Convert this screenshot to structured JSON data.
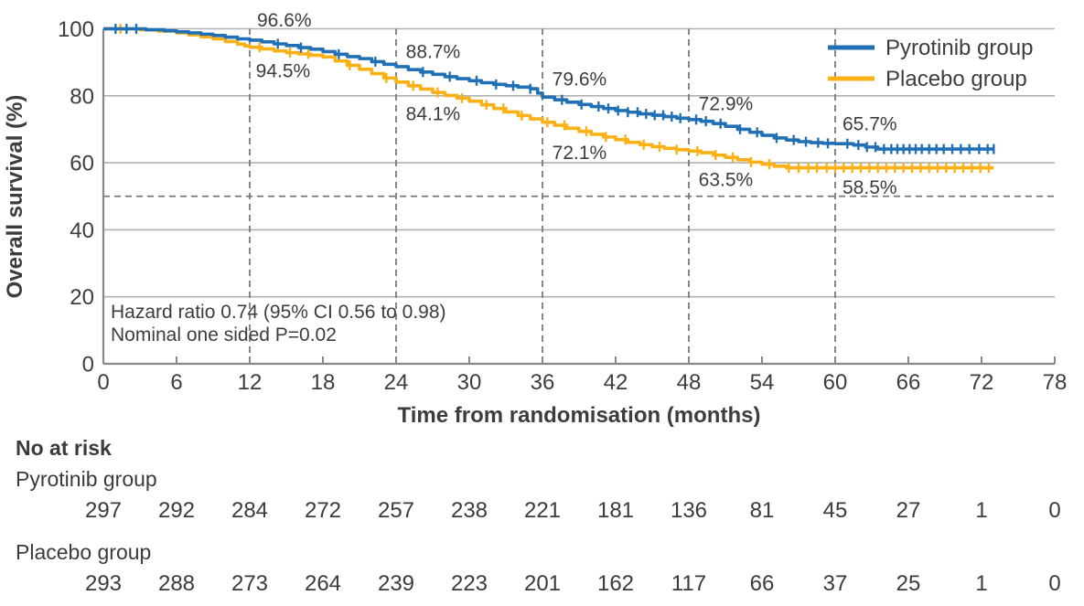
{
  "chart_data": {
    "type": "line",
    "subtype": "kaplan-meier-step",
    "xlabel": "Time from randomisation (months)",
    "ylabel": "Overall survival (%)",
    "xlim": [
      0,
      78
    ],
    "ylim": [
      0,
      100
    ],
    "xticks": [
      0,
      6,
      12,
      18,
      24,
      30,
      36,
      42,
      48,
      54,
      60,
      66,
      72,
      78
    ],
    "yticks": [
      0,
      20,
      40,
      60,
      80,
      100
    ],
    "grid": "horizontal-solid",
    "dashed_vlines_months": [
      12,
      24,
      36,
      48,
      60
    ],
    "dashed_hline_pct": 50,
    "legend_position": "top-right",
    "colors": {
      "pyrotinib": "#2170B5",
      "placebo": "#FBB016",
      "gridline": "#B1B1B1",
      "axis": "#878787",
      "dashed": "#7A7A7A",
      "text": "#3D3D3D"
    },
    "series": [
      {
        "name": "Pyrotinib group",
        "color": "#2170B5",
        "points": [
          [
            0,
            100
          ],
          [
            3.5,
            99.7
          ],
          [
            5,
            99.4
          ],
          [
            6,
            99.1
          ],
          [
            7,
            98.8
          ],
          [
            8,
            98.4
          ],
          [
            9,
            98
          ],
          [
            10,
            97.5
          ],
          [
            11,
            97
          ],
          [
            12,
            96.6
          ],
          [
            13,
            96.1
          ],
          [
            14,
            95.5
          ],
          [
            15,
            95
          ],
          [
            16,
            94.4
          ],
          [
            17,
            93.9
          ],
          [
            18,
            93.2
          ],
          [
            19,
            92.4
          ],
          [
            20,
            91.7
          ],
          [
            21,
            91.1
          ],
          [
            22,
            90.2
          ],
          [
            23,
            89.4
          ],
          [
            24,
            88.7
          ],
          [
            25,
            87.8
          ],
          [
            26,
            87.1
          ],
          [
            27,
            86.4
          ],
          [
            28,
            85.7
          ],
          [
            29,
            85.1
          ],
          [
            30,
            84.5
          ],
          [
            31,
            83.9
          ],
          [
            32,
            83.4
          ],
          [
            33,
            83
          ],
          [
            34,
            82.6
          ],
          [
            35,
            82.1
          ],
          [
            35.6,
            80.8
          ],
          [
            36,
            79.6
          ],
          [
            37,
            78.8
          ],
          [
            38,
            78.1
          ],
          [
            39,
            77.4
          ],
          [
            40,
            76.8
          ],
          [
            41,
            76.2
          ],
          [
            42,
            75.6
          ],
          [
            43,
            75.1
          ],
          [
            44,
            74.6
          ],
          [
            45,
            74.2
          ],
          [
            46,
            73.8
          ],
          [
            47,
            73.3
          ],
          [
            48,
            72.9
          ],
          [
            49,
            72.4
          ],
          [
            50,
            71.7
          ],
          [
            51,
            70.9
          ],
          [
            52,
            70
          ],
          [
            53,
            69.1
          ],
          [
            54,
            68.2
          ],
          [
            55,
            67.4
          ],
          [
            56,
            66.8
          ],
          [
            57,
            66.3
          ],
          [
            58,
            66
          ],
          [
            59,
            65.8
          ],
          [
            60,
            65.7
          ],
          [
            61.5,
            65.3
          ],
          [
            62.5,
            64.7
          ],
          [
            63.5,
            64.1
          ],
          [
            73,
            64.1
          ]
        ],
        "censor_times": [
          1,
          1.9,
          2.7,
          14.3,
          16.2,
          19.3,
          22.3,
          26.2,
          28.4,
          30.6,
          32.2,
          33.6,
          35,
          37.6,
          39.2,
          40.6,
          41.4,
          42.2,
          43,
          43.8,
          44.5,
          45.2,
          45.9,
          46.6,
          47.3,
          48.6,
          49.4,
          50.6,
          52.2,
          53.6,
          55.2,
          56.6,
          57.6,
          58.6,
          59.4,
          61,
          61.9,
          62.6,
          63.3,
          64,
          64.6,
          65.1,
          65.6,
          66.1,
          66.6,
          67.1,
          67.7,
          68.3,
          68.9,
          69.6,
          70.3,
          71,
          71.8,
          72.5,
          73
        ]
      },
      {
        "name": "Placebo group",
        "color": "#FBB016",
        "points": [
          [
            0,
            100
          ],
          [
            3,
            99.7
          ],
          [
            4.5,
            99.3
          ],
          [
            6,
            98.8
          ],
          [
            7,
            98.2
          ],
          [
            8,
            97.6
          ],
          [
            9,
            97
          ],
          [
            10,
            96.2
          ],
          [
            11,
            95.4
          ],
          [
            11.6,
            94.9
          ],
          [
            12,
            94.5
          ],
          [
            13,
            94
          ],
          [
            14,
            93.4
          ],
          [
            15,
            92.9
          ],
          [
            16,
            92.5
          ],
          [
            17,
            92.1
          ],
          [
            18,
            91.6
          ],
          [
            19,
            90.4
          ],
          [
            20,
            89.1
          ],
          [
            21,
            87.9
          ],
          [
            22,
            86.6
          ],
          [
            23,
            85.3
          ],
          [
            24,
            84.1
          ],
          [
            25,
            83
          ],
          [
            26,
            82
          ],
          [
            27,
            81
          ],
          [
            28,
            80.1
          ],
          [
            29,
            79.3
          ],
          [
            30,
            78.4
          ],
          [
            31,
            77.3
          ],
          [
            32,
            76.2
          ],
          [
            33,
            75.2
          ],
          [
            34,
            74.1
          ],
          [
            35,
            73.1
          ],
          [
            36,
            72.1
          ],
          [
            37,
            71.2
          ],
          [
            38,
            70.3
          ],
          [
            39,
            69.4
          ],
          [
            40,
            68.5
          ],
          [
            41,
            67.7
          ],
          [
            42,
            66.9
          ],
          [
            43,
            66.1
          ],
          [
            44,
            65.4
          ],
          [
            45,
            64.8
          ],
          [
            46,
            64.3
          ],
          [
            47,
            63.9
          ],
          [
            48,
            63.5
          ],
          [
            49,
            63
          ],
          [
            50,
            62.3
          ],
          [
            51,
            61.6
          ],
          [
            52,
            60.9
          ],
          [
            53,
            60.2
          ],
          [
            54,
            59.6
          ],
          [
            55,
            59
          ],
          [
            56,
            58.5
          ],
          [
            73,
            58.5
          ]
        ],
        "censor_times": [
          1.4,
          12.8,
          15.3,
          16.8,
          20.2,
          23.2,
          25.4,
          27.4,
          29.4,
          31.4,
          32.8,
          34.3,
          36.4,
          37.8,
          39.6,
          41.2,
          42.8,
          44.3,
          45.6,
          47,
          48.7,
          50.2,
          51.6,
          53.1,
          54.6,
          56.2,
          57,
          57.8,
          58.5,
          59.3,
          60,
          60.7,
          61.4,
          62.1,
          62.8,
          63.5,
          64.2,
          64.9,
          65.6,
          66.3,
          67,
          67.7,
          68.4,
          69.1,
          69.8,
          70.5,
          71.2,
          71.9,
          72.6
        ]
      }
    ],
    "annotations": [
      {
        "text": "96.6%",
        "x": 12.6,
        "y": 102.6,
        "series": "Pyrotinib group"
      },
      {
        "text": "94.5%",
        "x": 12.5,
        "y": 87.4,
        "series": "Placebo group"
      },
      {
        "text": "88.7%",
        "x": 24.8,
        "y": 93.2,
        "series": "Pyrotinib group"
      },
      {
        "text": "84.1%",
        "x": 24.8,
        "y": 74.6,
        "series": "Placebo group"
      },
      {
        "text": "79.6%",
        "x": 36.8,
        "y": 85.0,
        "series": "Pyrotinib group"
      },
      {
        "text": "72.1%",
        "x": 36.8,
        "y": 63.0,
        "series": "Placebo group"
      },
      {
        "text": "72.9%",
        "x": 48.8,
        "y": 77.6,
        "series": "Pyrotinib group"
      },
      {
        "text": "63.5%",
        "x": 48.8,
        "y": 55.0,
        "series": "Placebo group"
      },
      {
        "text": "65.7%",
        "x": 60.6,
        "y": 71.6,
        "series": "Pyrotinib group"
      },
      {
        "text": "58.5%",
        "x": 60.6,
        "y": 52.6,
        "series": "Placebo group"
      }
    ],
    "stats_note": [
      "Hazard ratio 0.74 (95% CI 0.56 to 0.98)",
      "Nominal one sided P=0.02"
    ],
    "risk_table": {
      "header": "No at risk",
      "timepoints": [
        0,
        6,
        12,
        18,
        24,
        30,
        36,
        42,
        48,
        54,
        60,
        66,
        72,
        78
      ],
      "rows": [
        {
          "label": "Pyrotinib group",
          "values": [
            297,
            292,
            284,
            272,
            257,
            238,
            221,
            181,
            136,
            81,
            45,
            27,
            1,
            0
          ]
        },
        {
          "label": "Placebo group",
          "values": [
            293,
            288,
            273,
            264,
            239,
            223,
            201,
            162,
            117,
            66,
            37,
            25,
            1,
            0
          ]
        }
      ]
    }
  }
}
